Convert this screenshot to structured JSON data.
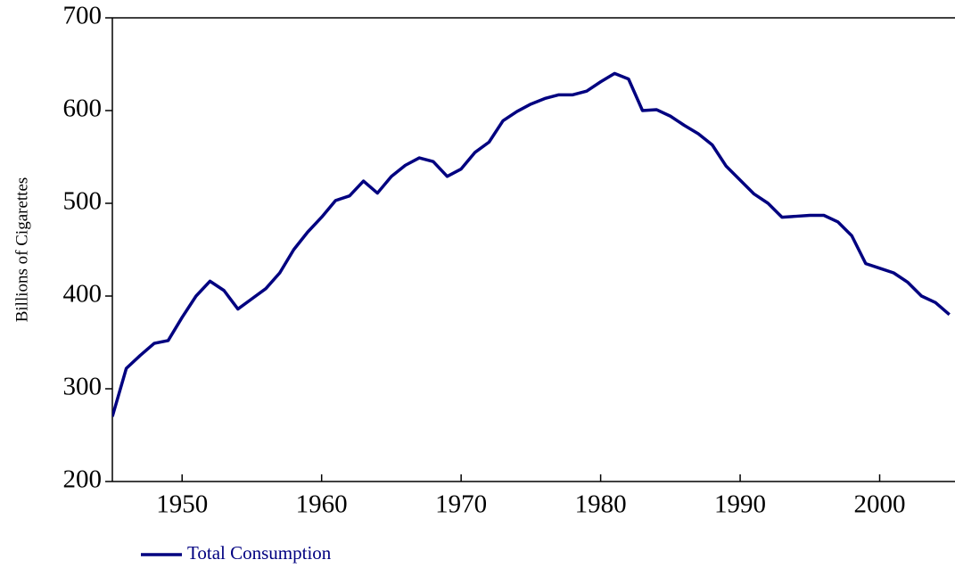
{
  "chart_data": {
    "type": "line",
    "y_label": "Billions of Cigarettes",
    "x": [
      1945,
      1946,
      1947,
      1948,
      1949,
      1950,
      1951,
      1952,
      1953,
      1954,
      1955,
      1956,
      1957,
      1958,
      1959,
      1960,
      1961,
      1962,
      1963,
      1964,
      1965,
      1966,
      1967,
      1968,
      1969,
      1970,
      1971,
      1972,
      1973,
      1974,
      1975,
      1976,
      1977,
      1978,
      1979,
      1980,
      1981,
      1982,
      1983,
      1984,
      1985,
      1986,
      1987,
      1988,
      1989,
      1990,
      1991,
      1992,
      1993,
      1994,
      1995,
      1996,
      1997,
      1998,
      1999,
      2000,
      2001,
      2002,
      2003,
      2004,
      2005
    ],
    "series": [
      {
        "name": "Total Consumption",
        "color": "#000080",
        "values": [
          270,
          322,
          336,
          349,
          352,
          377,
          400,
          416,
          406,
          386,
          397,
          408,
          425,
          450,
          469,
          485,
          503,
          508,
          524,
          511,
          529,
          541,
          549,
          545,
          529,
          537,
          555,
          566,
          589,
          599,
          607,
          613,
          617,
          617,
          621,
          631,
          640,
          634,
          600,
          601,
          594,
          584,
          575,
          563,
          540,
          525,
          510,
          500,
          485,
          486,
          487,
          487,
          480,
          465,
          435,
          430,
          425,
          415,
          400,
          393,
          380
        ]
      }
    ],
    "xlim": [
      1945,
      2005.4
    ],
    "xticks": [
      1950,
      1960,
      1970,
      1980,
      1990,
      2000
    ],
    "ylim": [
      200,
      700
    ],
    "yticks": [
      200,
      300,
      400,
      500,
      600,
      700
    ],
    "legend": "bottom-left"
  }
}
